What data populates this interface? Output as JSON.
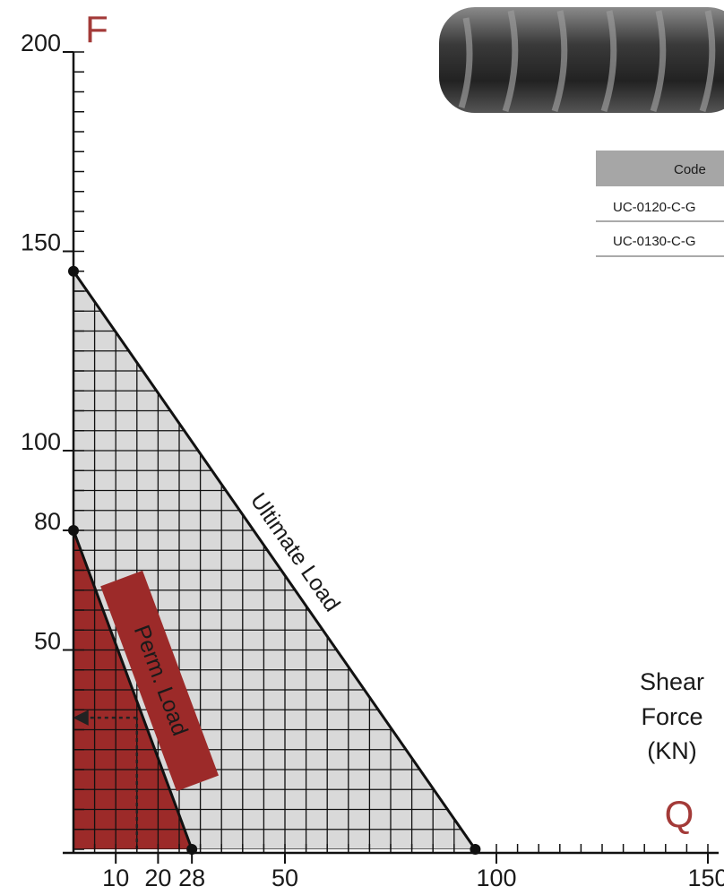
{
  "chart_data": {
    "type": "area",
    "y_label": "F",
    "x_label": "Q",
    "x_unit_label_lines": [
      "Shear",
      "Force",
      "(KN)"
    ],
    "xlim": [
      0,
      150
    ],
    "ylim": [
      0,
      200
    ],
    "xticks": [
      10,
      20,
      28,
      50,
      100,
      150
    ],
    "yticks": [
      50,
      80,
      100,
      150,
      200
    ],
    "xminorticks": [
      0,
      5,
      10,
      15,
      20,
      25,
      30,
      35,
      40,
      45,
      50,
      55,
      60,
      65,
      70,
      75,
      80,
      85,
      90,
      95,
      100,
      105,
      110,
      115,
      120,
      125,
      130,
      135,
      140,
      145,
      150
    ],
    "yminorticks": [
      0,
      5,
      10,
      15,
      20,
      25,
      30,
      35,
      40,
      45,
      50,
      55,
      60,
      65,
      70,
      75,
      80,
      85,
      90,
      95,
      100,
      105,
      110,
      115,
      120,
      125,
      130,
      135,
      140,
      145,
      150,
      155,
      160,
      165,
      170,
      175,
      180,
      185,
      190,
      195,
      200
    ],
    "grid": true,
    "series": [
      {
        "name": "Ultimate Load",
        "color": "#d9d9d9",
        "x": [
          0,
          95
        ],
        "values": [
          145,
          0
        ]
      },
      {
        "name": "Perm. Load",
        "color": "#9c2a29",
        "x": [
          0,
          28
        ],
        "values": [
          80,
          0
        ]
      }
    ],
    "guide": {
      "x": 15,
      "y": 33
    }
  },
  "table": {
    "header": "Code",
    "rows": [
      "UC-0120-C-G",
      "UC-0130-C-G"
    ]
  }
}
